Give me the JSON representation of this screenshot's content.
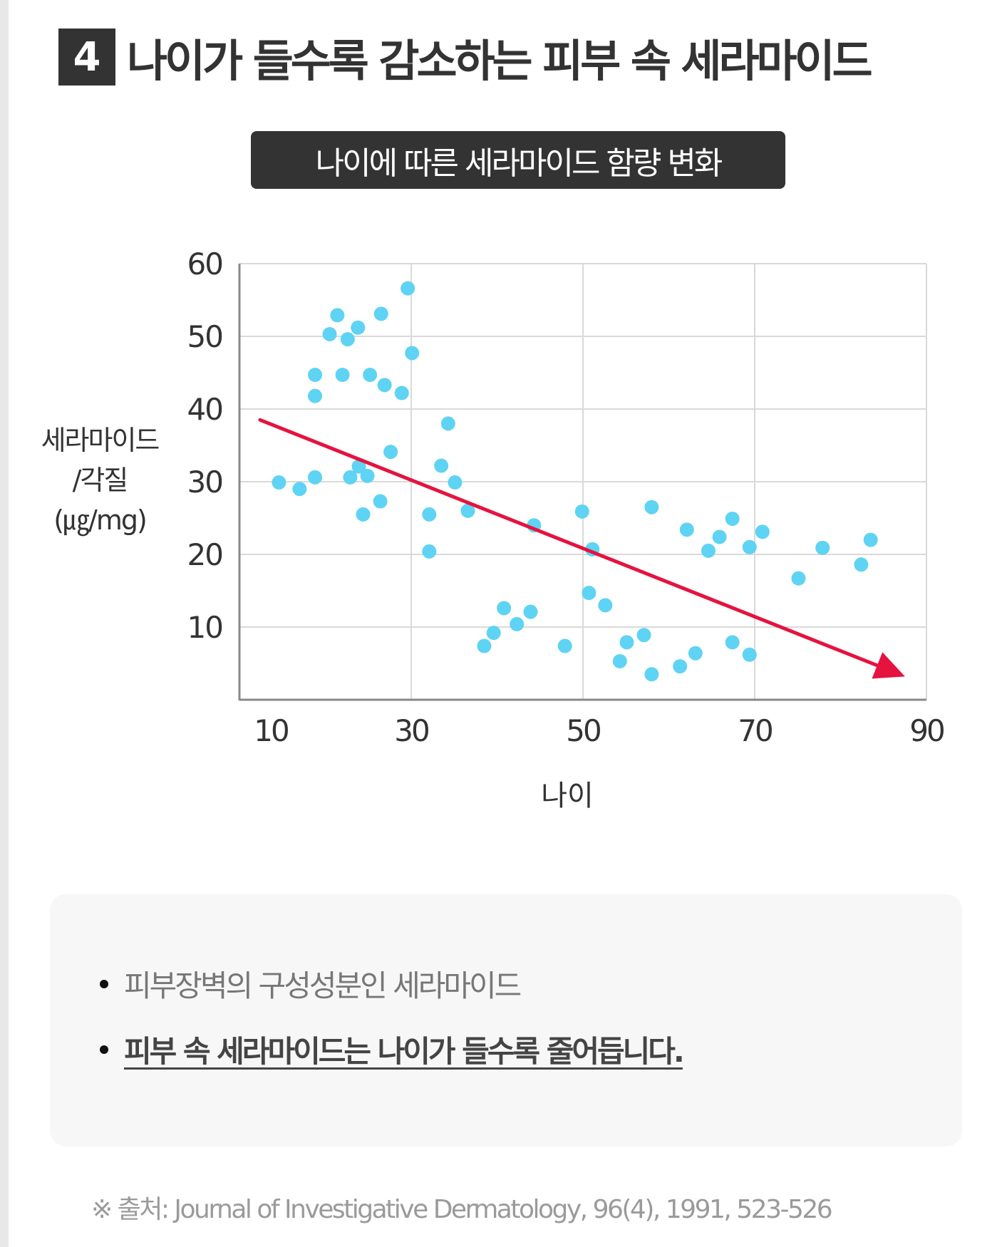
{
  "header": {
    "badge": "4",
    "title": "나이가 들수록 감소하는 피부 속 세라마이드",
    "subtitle": "나이에 따른 세라마이드 함량 변화"
  },
  "colors": {
    "dark": "#333333",
    "point": "#5fd3f3",
    "trend": "#e5133f",
    "grid": "#d9d9d9",
    "axis": "#888888",
    "note_bg": "#f7f7f7"
  },
  "chart_data": {
    "type": "scatter",
    "title": "나이에 따른 세라마이드 함량 변화",
    "xlabel": "나이",
    "ylabel_lines": [
      "세라마이드",
      "/각질",
      "(㎍/mg)"
    ],
    "xlim": [
      10,
      90
    ],
    "ylim": [
      0,
      60
    ],
    "x_ticks": [
      10,
      30,
      50,
      70,
      90
    ],
    "x_tick_labels": [
      "10",
      "30",
      "50",
      "70",
      "90"
    ],
    "y_ticks": [
      10,
      20,
      30,
      40,
      50,
      60
    ],
    "y_tick_labels": [
      "10",
      "20",
      "30",
      "40",
      "50",
      "60"
    ],
    "grid": true,
    "points": [
      [
        29.6,
        56.6
      ],
      [
        21.4,
        52.9
      ],
      [
        26.5,
        53.1
      ],
      [
        23.8,
        51.2
      ],
      [
        20.5,
        50.3
      ],
      [
        22.6,
        49.6
      ],
      [
        30.1,
        47.7
      ],
      [
        18.8,
        44.7
      ],
      [
        22.0,
        44.7
      ],
      [
        25.2,
        44.7
      ],
      [
        26.9,
        43.3
      ],
      [
        28.9,
        42.2
      ],
      [
        18.8,
        41.8
      ],
      [
        34.3,
        38.0
      ],
      [
        27.6,
        34.1
      ],
      [
        33.5,
        32.2
      ],
      [
        23.9,
        32.1
      ],
      [
        24.9,
        30.8
      ],
      [
        22.9,
        30.6
      ],
      [
        18.8,
        30.6
      ],
      [
        14.6,
        29.9
      ],
      [
        35.1,
        29.9
      ],
      [
        17.0,
        29.0
      ],
      [
        26.4,
        27.3
      ],
      [
        24.4,
        25.5
      ],
      [
        32.1,
        25.5
      ],
      [
        32.1,
        20.4
      ],
      [
        36.6,
        26.0
      ],
      [
        44.3,
        24.0
      ],
      [
        49.9,
        25.9
      ],
      [
        58.0,
        26.5
      ],
      [
        62.1,
        23.4
      ],
      [
        51.1,
        20.7
      ],
      [
        50.7,
        14.7
      ],
      [
        52.6,
        13.0
      ],
      [
        40.8,
        12.6
      ],
      [
        43.9,
        12.1
      ],
      [
        42.3,
        10.4
      ],
      [
        39.6,
        9.2
      ],
      [
        38.5,
        7.4
      ],
      [
        47.9,
        7.4
      ],
      [
        57.1,
        8.9
      ],
      [
        55.1,
        7.9
      ],
      [
        54.3,
        5.3
      ],
      [
        58.0,
        3.5
      ],
      [
        61.3,
        4.6
      ],
      [
        63.1,
        6.4
      ],
      [
        64.6,
        20.5
      ],
      [
        65.9,
        22.4
      ],
      [
        67.4,
        24.9
      ],
      [
        69.4,
        21.0
      ],
      [
        70.9,
        23.1
      ],
      [
        75.1,
        16.7
      ],
      [
        77.9,
        20.9
      ],
      [
        82.4,
        18.6
      ],
      [
        83.5,
        22.0
      ],
      [
        67.4,
        7.9
      ],
      [
        69.4,
        6.2
      ]
    ],
    "trend_arrow": {
      "from": [
        12.4,
        38.5
      ],
      "to": [
        87.5,
        3.2
      ]
    }
  },
  "notes": {
    "items": [
      "피부장벽의 구성성분인 세라마이드",
      "피부 속 세라마이드는 나이가 들수록 줄어듭니다."
    ]
  },
  "source": "※ 출처: Journal of Investigative Dermatology, 96(4), 1991, 523-526"
}
